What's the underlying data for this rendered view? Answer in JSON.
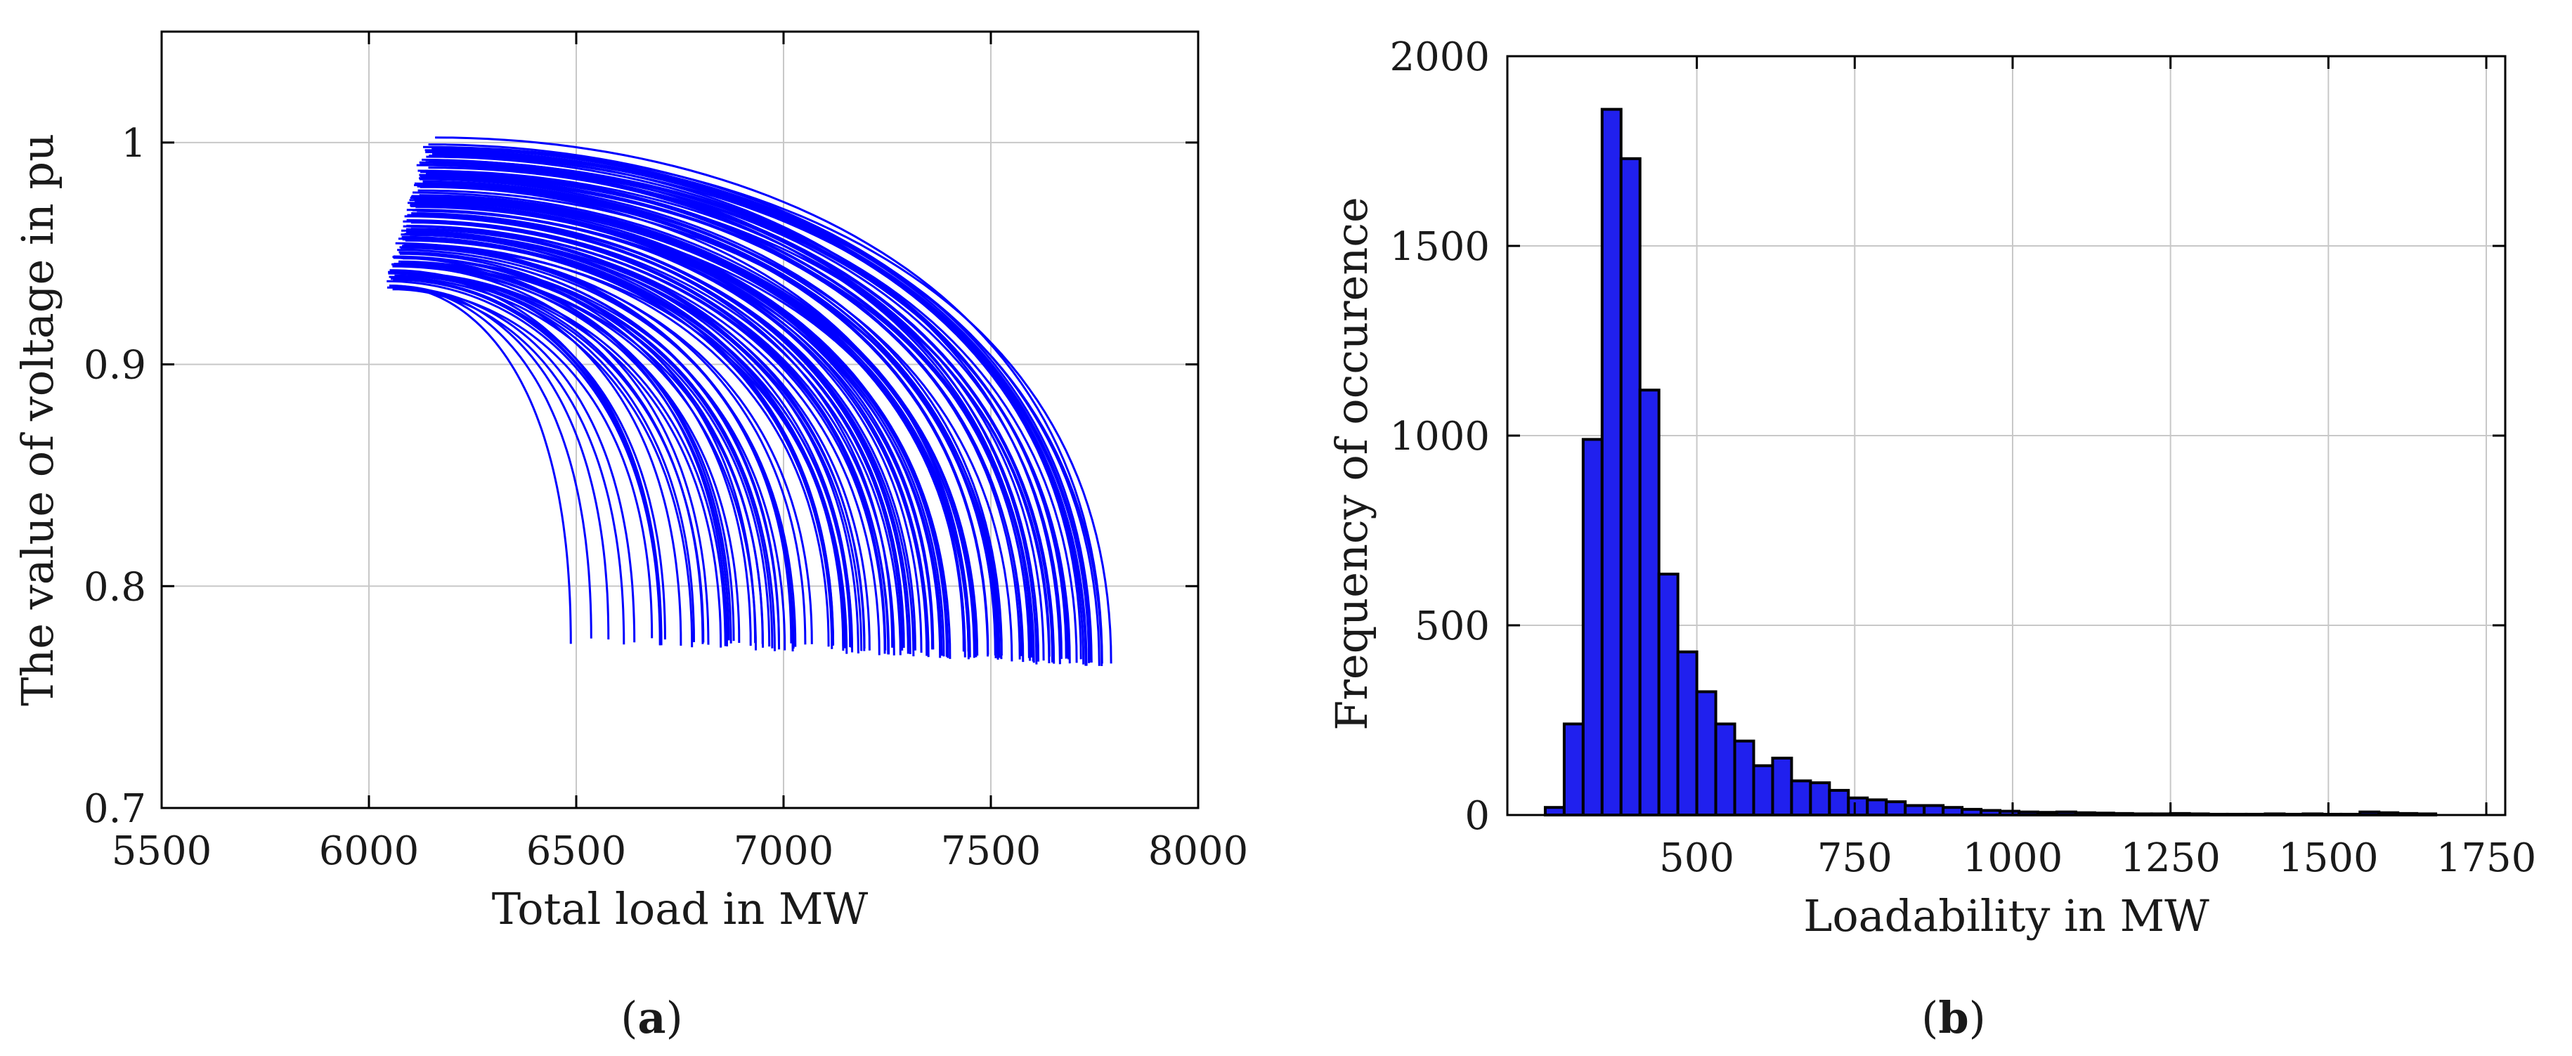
{
  "captions": {
    "a": "a",
    "b": "b"
  },
  "colors": {
    "series": "#0000ff",
    "hist_fill": "#2020ee",
    "hist_edge": "#000000",
    "grid": "#c8c8c8",
    "axis": "#000000"
  },
  "chart_data": [
    {
      "type": "line",
      "title": "",
      "xlabel": "Total load in MW",
      "ylabel": "The value of voltage in pu",
      "xlim": [
        5500,
        8000
      ],
      "ylim": [
        0.7,
        1.05
      ],
      "xticks": [
        5500,
        6000,
        6500,
        7000,
        7500,
        8000
      ],
      "yticks": [
        0.7,
        0.8,
        0.9,
        1
      ],
      "xtick_labels": [
        "5500",
        "6000",
        "6500",
        "7000",
        "7500",
        "8000"
      ],
      "ytick_labels": [
        "0.7",
        "0.8",
        "0.9",
        "1"
      ],
      "grid": true,
      "description_series": "PV curves for many scenarios",
      "envelope": {
        "upper_outer_curve": {
          "x": [
            6150,
            6500,
            6800,
            7100,
            7350,
            7550,
            7700,
            7770,
            7790
          ],
          "y": [
            1.0,
            0.992,
            0.975,
            0.95,
            0.915,
            0.87,
            0.82,
            0.785,
            0.765
          ]
        },
        "lower_inner_boundary": {
          "x": [
            6050,
            6200,
            6350,
            6430,
            6480,
            6510
          ],
          "y": [
            0.935,
            0.91,
            0.875,
            0.845,
            0.81,
            0.775
          ]
        },
        "left_edge": {
          "x": [
            6050,
            6080,
            6100,
            6130,
            6150
          ],
          "y": [
            0.935,
            0.96,
            0.98,
            0.995,
            1.0
          ]
        },
        "bottom_tips": {
          "x": [
            6510,
            7200,
            7420,
            7600,
            7680,
            7790
          ],
          "y": [
            0.775,
            0.773,
            0.77,
            0.768,
            0.766,
            0.765
          ]
        }
      }
    },
    {
      "type": "bar",
      "title": "",
      "xlabel": "Loadability in MW",
      "ylabel": "Frequency of occurence",
      "xlim": [
        200,
        1780
      ],
      "ylim": [
        0,
        2000
      ],
      "xticks": [
        500,
        750,
        1000,
        1250,
        1500,
        1750
      ],
      "yticks": [
        0,
        500,
        1000,
        1500,
        2000
      ],
      "xtick_labels": [
        "500",
        "750",
        "1000",
        "1250",
        "1500",
        "1750"
      ],
      "ytick_labels": [
        "0",
        "500",
        "1000",
        "1500",
        "2000"
      ],
      "grid": true,
      "bin_start": 260,
      "bin_width": 30,
      "values": [
        20,
        240,
        990,
        1860,
        1730,
        1120,
        635,
        430,
        325,
        240,
        195,
        130,
        150,
        90,
        85,
        65,
        45,
        40,
        35,
        25,
        25,
        20,
        15,
        12,
        10,
        8,
        7,
        8,
        6,
        5,
        4,
        3,
        3,
        4,
        3,
        2,
        2,
        2,
        3,
        2,
        3,
        2,
        2,
        8,
        6,
        4,
        3
      ]
    }
  ]
}
